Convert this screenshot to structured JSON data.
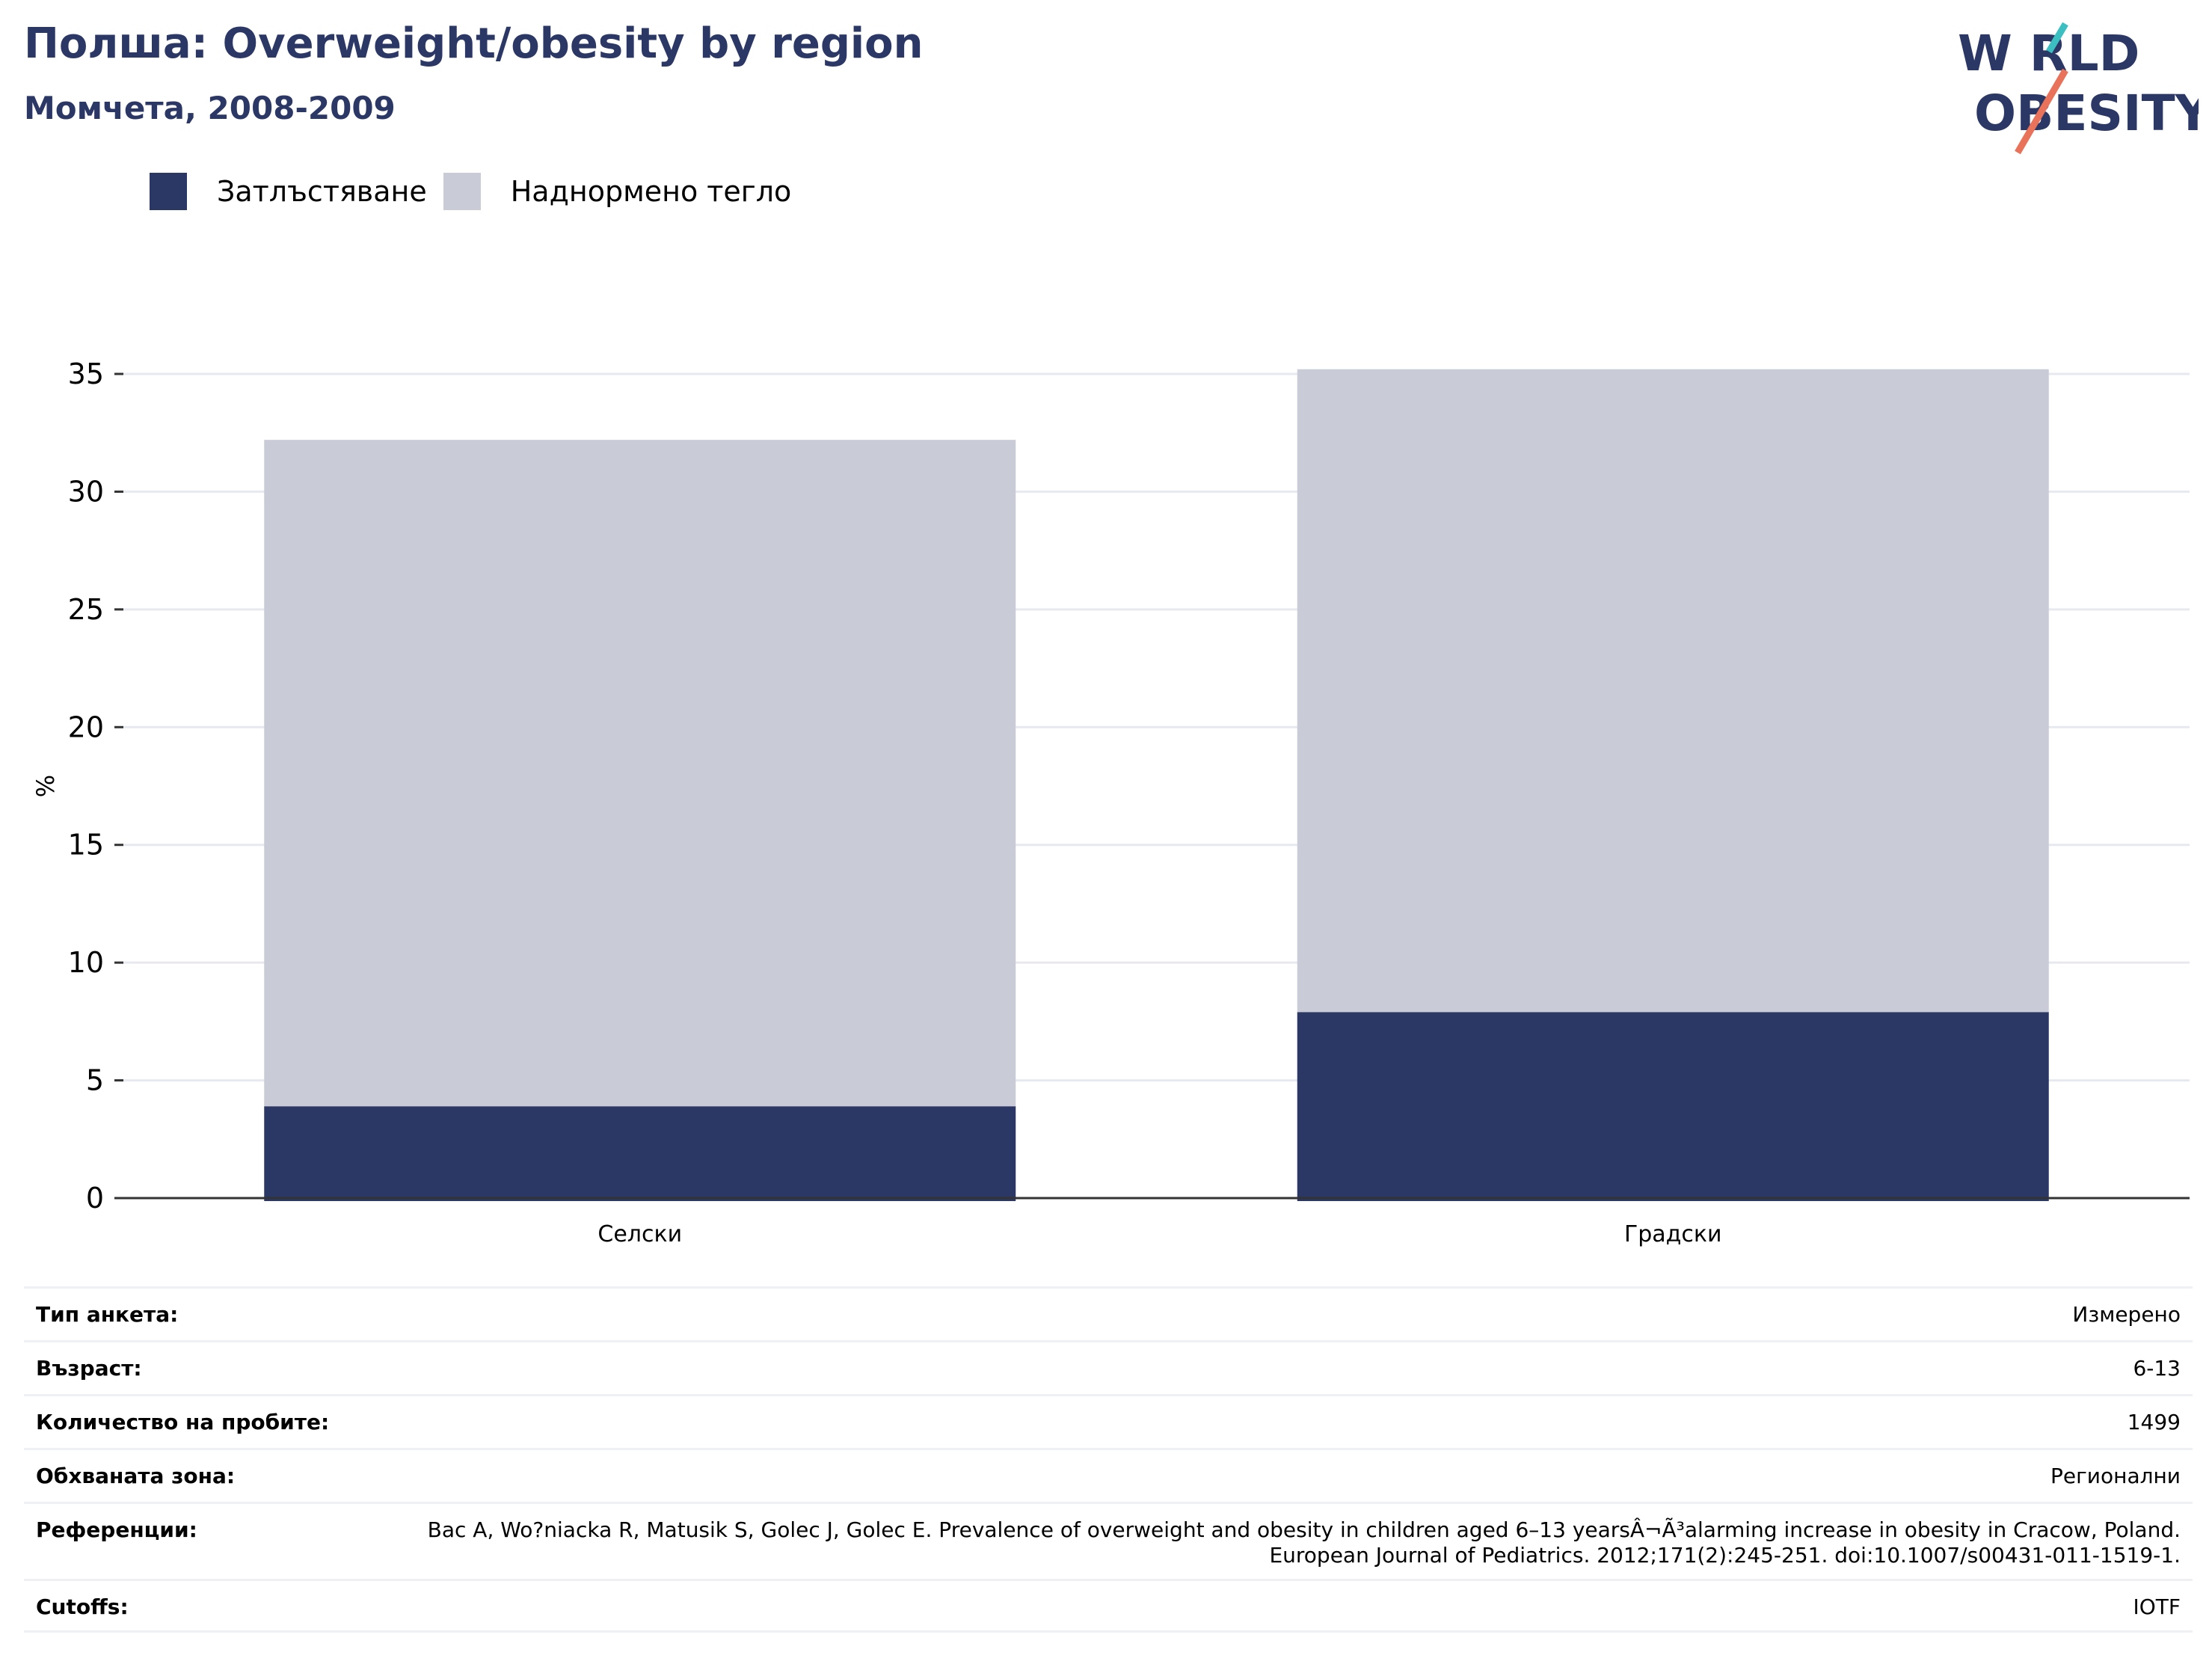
{
  "header": {
    "title": "Полша: Overweight/obesity by region",
    "subtitle": "Момчета, 2008-2009"
  },
  "logo": {
    "line1": "W RLD",
    "line2": "OBESITY",
    "name": "world-obesity-logo"
  },
  "legend": {
    "items": [
      {
        "label": "Затлъстяване",
        "color": "#2b3765"
      },
      {
        "label": "Наднормено тегло",
        "color": "#c9cbd7"
      }
    ]
  },
  "chart_data": {
    "type": "bar",
    "stacked": true,
    "categories": [
      "Селски",
      "Градски"
    ],
    "series": [
      {
        "name": "Затлъстяване",
        "values": [
          3.9,
          7.9
        ],
        "color": "#2b3765"
      },
      {
        "name": "Наднормено тегло",
        "values": [
          28.3,
          27.3
        ],
        "color": "#c9cbd7"
      }
    ],
    "ylabel": "%",
    "ylim": [
      0,
      35
    ],
    "yticks": [
      0,
      5,
      10,
      15,
      20,
      25,
      30,
      35
    ],
    "grid": true,
    "legend_position": "top-left"
  },
  "info": {
    "rows": [
      {
        "label": "Тип анкета:",
        "value": "Измерено"
      },
      {
        "label": "Възраст:",
        "value": "6-13"
      },
      {
        "label": "Количество на пробите:",
        "value": "1499"
      },
      {
        "label": "Обхваната зона:",
        "value": "Регионални"
      },
      {
        "label": "Референции:",
        "value": "Bac A, Wo?niacka R, Matusik S, Golec J, Golec E. Prevalence of overweight and obesity in children aged 6–13 yearsÂ¬Ã³alarming increase in obesity in Cracow, Poland. European Journal of Pediatrics. 2012;171(2):245-251. doi:10.1007/s00431-011-1519-1."
      },
      {
        "label": "Cutoffs:",
        "value": "IOTF"
      }
    ]
  }
}
